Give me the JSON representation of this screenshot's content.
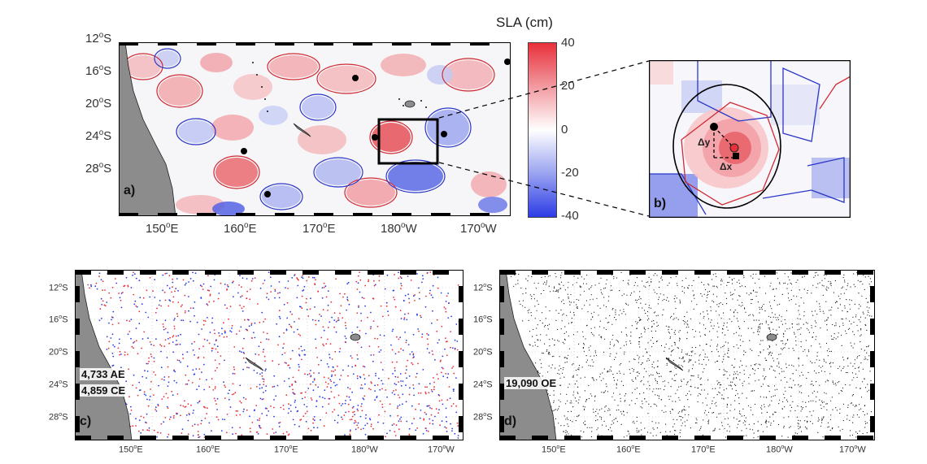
{
  "panel_a": {
    "label": "a)",
    "lat_ticks": [
      "12",
      "16",
      "20",
      "24",
      "28"
    ],
    "lat_suffix": "S",
    "lon_ticks": [
      {
        "deg": "150",
        "dir": "E"
      },
      {
        "deg": "160",
        "dir": "E"
      },
      {
        "deg": "170",
        "dir": "E"
      },
      {
        "deg": "180",
        "dir": "W"
      },
      {
        "deg": "170",
        "dir": "W"
      }
    ]
  },
  "colorbar": {
    "title": "SLA (cm)",
    "ticks": [
      "40",
      "20",
      "0",
      "-20",
      "-40"
    ],
    "colors": {
      "positive": "#e8303a",
      "zero": "#ffffff",
      "negative": "#2c3ce6"
    }
  },
  "panel_b": {
    "label": "b)",
    "dy_label": "Δy",
    "dx_label": "Δx"
  },
  "panel_c": {
    "label": "c)",
    "ae_count": "4,733 AE",
    "ce_count": "4,859 CE",
    "lat_ticks": [
      "12",
      "16",
      "20",
      "24",
      "28"
    ],
    "lon_ticks": [
      {
        "deg": "150",
        "dir": "E"
      },
      {
        "deg": "160",
        "dir": "E"
      },
      {
        "deg": "170",
        "dir": "E"
      },
      {
        "deg": "180",
        "dir": "W"
      },
      {
        "deg": "170",
        "dir": "W"
      }
    ]
  },
  "panel_d": {
    "label": "d)",
    "oe_count": "19,090 OE",
    "lat_ticks": [
      "12",
      "16",
      "20",
      "24",
      "28"
    ],
    "lon_ticks": [
      {
        "deg": "150",
        "dir": "E"
      },
      {
        "deg": "160",
        "dir": "E"
      },
      {
        "deg": "170",
        "dir": "E"
      },
      {
        "deg": "180",
        "dir": "W"
      },
      {
        "deg": "170",
        "dir": "W"
      }
    ]
  },
  "colors": {
    "land": "#8c8c8c",
    "anticyclonic": "#e8303a",
    "cyclonic": "#2c3ce6",
    "observed": "#111111"
  }
}
